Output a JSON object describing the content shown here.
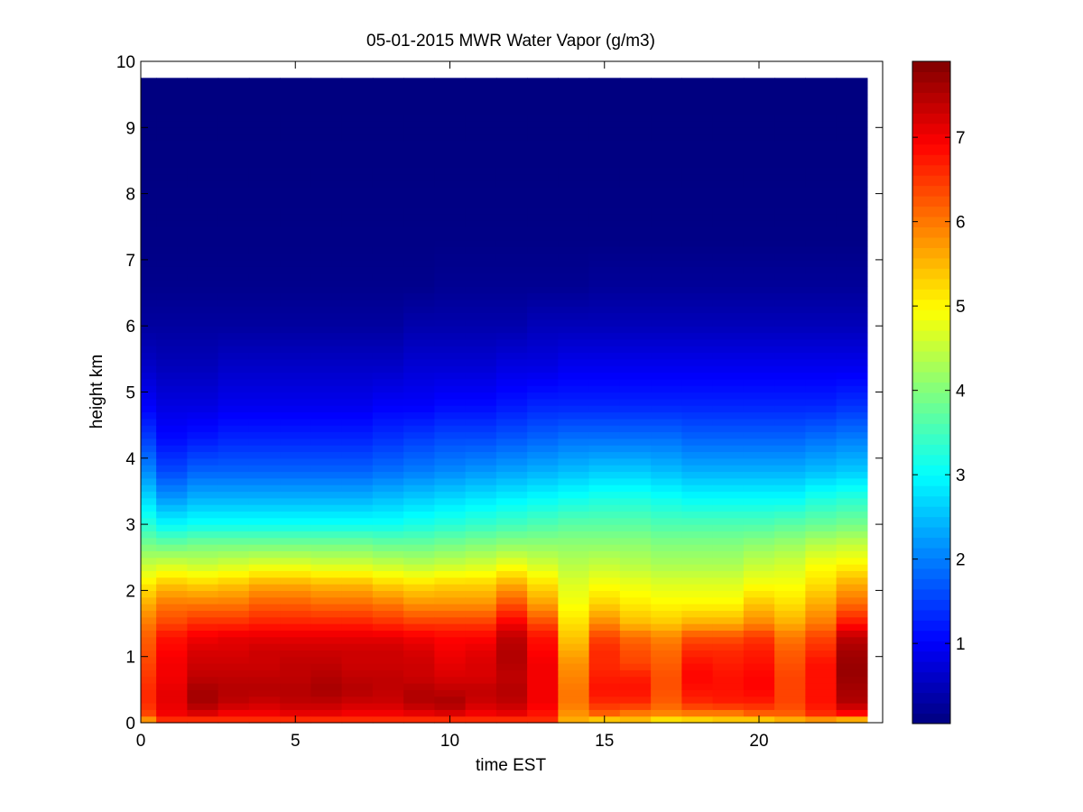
{
  "chart_data": {
    "type": "heatmap",
    "title": "05-01-2015 MWR Water Vapor (g/m3)",
    "xlabel": "time EST",
    "ylabel": "height km",
    "xlim": [
      0,
      24
    ],
    "ylim": [
      0,
      10
    ],
    "xticks": [
      0,
      5,
      10,
      15,
      20
    ],
    "yticks": [
      0,
      1,
      2,
      3,
      4,
      5,
      6,
      7,
      8,
      9,
      10
    ],
    "colormap": "jet",
    "clim": [
      0.05,
      7.9
    ],
    "colorbar_ticks": [
      1,
      2,
      3,
      4,
      5,
      6,
      7
    ],
    "data_extent": {
      "x": [
        0,
        23.5
      ],
      "y": [
        0,
        9.75
      ]
    },
    "time_hours": [
      0,
      1,
      2,
      3,
      4,
      5,
      6,
      7,
      8,
      9,
      10,
      11,
      12,
      13,
      14,
      15,
      16,
      17,
      18,
      19,
      20,
      21,
      22,
      23
    ],
    "profile_heights_km": [
      0.05,
      0.15,
      0.3,
      0.5,
      0.7,
      0.9,
      1.1,
      1.3,
      1.5,
      1.8,
      2.1,
      2.4,
      2.7,
      3.0,
      3.4,
      3.8,
      4.3,
      4.8,
      5.4,
      6.0,
      6.6,
      7.3,
      8.1,
      9.0,
      9.75
    ],
    "water_vapor_g_m3": [
      [
        5.8,
        6.6,
        6.6,
        6.6,
        6.6,
        6.6,
        6.6,
        6.6,
        6.6,
        6.6,
        6.6,
        6.6,
        6.6,
        6.6,
        5.6,
        5.4,
        5.5,
        5.2,
        5.3,
        5.4,
        5.4,
        5.6,
        5.8,
        5.6
      ],
      [
        6.4,
        7.0,
        7.2,
        7.0,
        7.0,
        7.1,
        7.1,
        7.0,
        7.0,
        7.1,
        7.2,
        7.0,
        7.1,
        6.8,
        5.8,
        6.2,
        6.0,
        5.9,
        6.0,
        6.0,
        6.2,
        6.2,
        6.6,
        6.9
      ],
      [
        6.6,
        7.1,
        7.6,
        7.4,
        7.3,
        7.4,
        7.4,
        7.3,
        7.3,
        7.5,
        7.6,
        7.3,
        7.4,
        7.0,
        6.0,
        6.6,
        6.6,
        6.2,
        6.6,
        6.7,
        6.7,
        6.4,
        6.8,
        7.5
      ],
      [
        6.6,
        7.1,
        7.6,
        7.5,
        7.5,
        7.5,
        7.6,
        7.5,
        7.4,
        7.5,
        7.4,
        7.4,
        7.5,
        7.0,
        6.0,
        6.8,
        6.8,
        6.3,
        6.8,
        6.8,
        6.9,
        6.4,
        6.8,
        7.6
      ],
      [
        6.5,
        7.0,
        7.4,
        7.4,
        7.4,
        7.4,
        7.5,
        7.4,
        7.4,
        7.3,
        7.2,
        7.2,
        7.4,
        7.0,
        5.9,
        6.7,
        6.7,
        6.3,
        6.9,
        6.8,
        6.9,
        6.4,
        6.8,
        7.7
      ],
      [
        6.4,
        7.0,
        7.3,
        7.3,
        7.3,
        7.4,
        7.4,
        7.3,
        7.3,
        7.3,
        7.1,
        7.2,
        7.5,
        7.0,
        5.8,
        6.6,
        6.4,
        6.2,
        6.8,
        6.7,
        6.8,
        6.3,
        6.8,
        7.7
      ],
      [
        6.3,
        6.9,
        7.2,
        7.2,
        7.3,
        7.3,
        7.3,
        7.3,
        7.3,
        7.2,
        7.0,
        7.1,
        7.5,
        6.9,
        5.6,
        6.6,
        6.3,
        6.1,
        6.6,
        6.6,
        6.7,
        6.2,
        6.6,
        7.6
      ],
      [
        6.2,
        6.8,
        7.0,
        7.1,
        7.1,
        7.1,
        7.1,
        7.1,
        7.1,
        7.0,
        6.9,
        6.9,
        7.4,
        6.8,
        5.4,
        6.4,
        6.1,
        5.9,
        6.3,
        6.3,
        6.5,
        6.0,
        6.4,
        7.4
      ],
      [
        6.0,
        6.4,
        6.6,
        6.6,
        6.7,
        6.7,
        6.7,
        6.7,
        6.6,
        6.5,
        6.5,
        6.5,
        7.0,
        6.4,
        5.2,
        5.9,
        5.5,
        5.4,
        5.6,
        5.6,
        5.9,
        5.6,
        6.0,
        6.8
      ],
      [
        5.6,
        6.0,
        6.0,
        6.0,
        6.2,
        6.2,
        6.1,
        6.1,
        6.0,
        5.8,
        5.8,
        5.8,
        6.3,
        5.7,
        4.9,
        5.3,
        5.1,
        5.0,
        5.0,
        5.0,
        5.4,
        5.2,
        5.6,
        6.1
      ],
      [
        5.1,
        5.4,
        5.3,
        5.4,
        5.6,
        5.6,
        5.5,
        5.5,
        5.3,
        5.2,
        5.3,
        5.3,
        5.6,
        5.2,
        4.7,
        4.9,
        4.8,
        4.7,
        4.7,
        4.7,
        4.9,
        4.9,
        5.2,
        5.6
      ],
      [
        4.5,
        4.6,
        4.5,
        4.6,
        4.7,
        4.7,
        4.6,
        4.6,
        4.5,
        4.4,
        4.5,
        4.6,
        4.8,
        4.6,
        4.4,
        4.5,
        4.4,
        4.3,
        4.3,
        4.3,
        4.5,
        4.6,
        4.9,
        5.0
      ],
      [
        3.9,
        3.8,
        3.9,
        3.9,
        3.9,
        3.9,
        3.9,
        3.9,
        3.8,
        3.8,
        3.9,
        4.0,
        4.1,
        4.1,
        4.1,
        4.1,
        4.1,
        4.0,
        4.0,
        4.0,
        4.1,
        4.2,
        4.4,
        4.5
      ],
      [
        3.3,
        3.0,
        3.1,
        3.1,
        3.1,
        3.1,
        3.1,
        3.1,
        3.1,
        3.2,
        3.3,
        3.4,
        3.5,
        3.6,
        3.7,
        3.7,
        3.7,
        3.6,
        3.6,
        3.6,
        3.6,
        3.7,
        3.8,
        3.9
      ],
      [
        2.7,
        2.2,
        2.4,
        2.4,
        2.4,
        2.4,
        2.4,
        2.4,
        2.5,
        2.6,
        2.7,
        2.8,
        2.9,
        3.0,
        3.1,
        3.2,
        3.2,
        3.1,
        3.0,
        3.0,
        3.0,
        3.0,
        3.2,
        3.3
      ],
      [
        2.1,
        1.6,
        1.8,
        1.8,
        1.8,
        1.8,
        1.8,
        1.8,
        1.9,
        2.0,
        2.1,
        2.2,
        2.3,
        2.4,
        2.5,
        2.6,
        2.6,
        2.5,
        2.4,
        2.4,
        2.4,
        2.4,
        2.5,
        2.6
      ],
      [
        1.5,
        1.1,
        1.2,
        1.3,
        1.3,
        1.3,
        1.3,
        1.3,
        1.4,
        1.5,
        1.6,
        1.6,
        1.7,
        1.8,
        1.9,
        1.9,
        1.9,
        1.9,
        1.8,
        1.8,
        1.8,
        1.8,
        1.9,
        2.0
      ],
      [
        1.0,
        0.8,
        0.8,
        0.9,
        0.9,
        0.9,
        0.9,
        0.9,
        1.0,
        1.0,
        1.1,
        1.1,
        1.2,
        1.3,
        1.3,
        1.3,
        1.3,
        1.3,
        1.3,
        1.3,
        1.3,
        1.3,
        1.3,
        1.4
      ],
      [
        0.6,
        0.5,
        0.5,
        0.6,
        0.6,
        0.6,
        0.6,
        0.6,
        0.6,
        0.7,
        0.7,
        0.7,
        0.8,
        0.8,
        0.9,
        0.9,
        0.9,
        0.9,
        0.9,
        0.9,
        0.9,
        0.9,
        0.9,
        0.9
      ],
      [
        0.3,
        0.3,
        0.3,
        0.3,
        0.3,
        0.3,
        0.3,
        0.3,
        0.3,
        0.4,
        0.4,
        0.4,
        0.4,
        0.5,
        0.5,
        0.5,
        0.5,
        0.5,
        0.5,
        0.5,
        0.5,
        0.5,
        0.5,
        0.5
      ],
      [
        0.15,
        0.15,
        0.15,
        0.15,
        0.15,
        0.15,
        0.15,
        0.15,
        0.15,
        0.15,
        0.2,
        0.2,
        0.2,
        0.2,
        0.2,
        0.25,
        0.25,
        0.25,
        0.25,
        0.25,
        0.25,
        0.25,
        0.25,
        0.25
      ],
      [
        0.1,
        0.1,
        0.1,
        0.1,
        0.1,
        0.1,
        0.1,
        0.1,
        0.1,
        0.1,
        0.1,
        0.1,
        0.1,
        0.1,
        0.1,
        0.1,
        0.1,
        0.1,
        0.1,
        0.1,
        0.1,
        0.1,
        0.1,
        0.1
      ],
      [
        0.08,
        0.08,
        0.08,
        0.08,
        0.08,
        0.08,
        0.08,
        0.08,
        0.08,
        0.08,
        0.08,
        0.08,
        0.08,
        0.08,
        0.08,
        0.08,
        0.08,
        0.08,
        0.08,
        0.08,
        0.08,
        0.08,
        0.08,
        0.08
      ],
      [
        0.06,
        0.06,
        0.06,
        0.06,
        0.06,
        0.06,
        0.06,
        0.06,
        0.06,
        0.06,
        0.06,
        0.06,
        0.06,
        0.06,
        0.06,
        0.06,
        0.06,
        0.06,
        0.06,
        0.06,
        0.06,
        0.06,
        0.06,
        0.06
      ],
      [
        0.05,
        0.05,
        0.05,
        0.05,
        0.05,
        0.05,
        0.05,
        0.05,
        0.05,
        0.05,
        0.05,
        0.05,
        0.05,
        0.05,
        0.05,
        0.05,
        0.05,
        0.05,
        0.05,
        0.05,
        0.05,
        0.05,
        0.05,
        0.05
      ]
    ]
  }
}
